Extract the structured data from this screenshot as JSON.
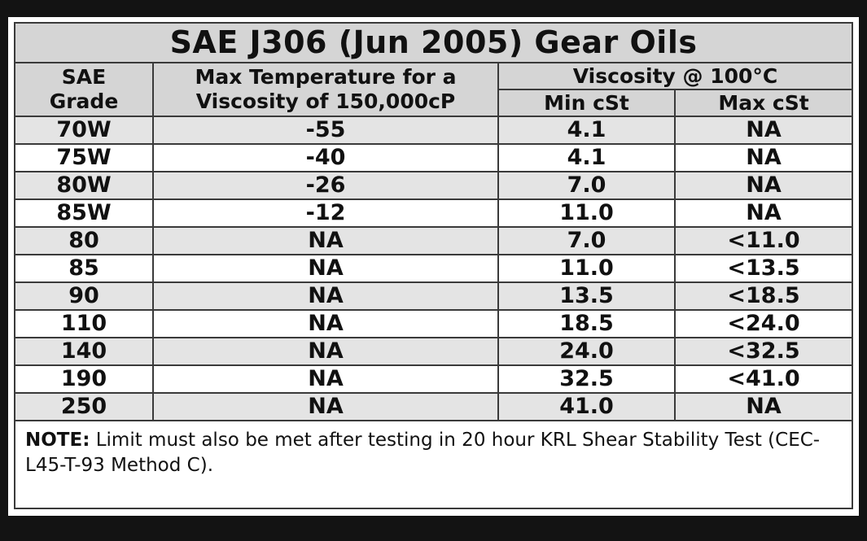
{
  "title": "SAE J306 (Jun 2005) Gear Oils",
  "headers": {
    "grade_line1": "SAE",
    "grade_line2": "Grade",
    "maxtemp_line1": "Max Temperature for a",
    "maxtemp_line2": "Viscosity of 150,000cP",
    "viscosity_group": "Viscosity @ 100°C",
    "min_cst": "Min cSt",
    "max_cst": "Max cSt"
  },
  "rows": [
    {
      "grade": "70W",
      "max_temp": "-55",
      "min_cst": "4.1",
      "max_cst": "NA"
    },
    {
      "grade": "75W",
      "max_temp": "-40",
      "min_cst": "4.1",
      "max_cst": "NA"
    },
    {
      "grade": "80W",
      "max_temp": "-26",
      "min_cst": "7.0",
      "max_cst": "NA"
    },
    {
      "grade": "85W",
      "max_temp": "-12",
      "min_cst": "11.0",
      "max_cst": "NA"
    },
    {
      "grade": "80",
      "max_temp": "NA",
      "min_cst": "7.0",
      "max_cst": "<11.0"
    },
    {
      "grade": "85",
      "max_temp": "NA",
      "min_cst": "11.0",
      "max_cst": "<13.5"
    },
    {
      "grade": "90",
      "max_temp": "NA",
      "min_cst": "13.5",
      "max_cst": "<18.5"
    },
    {
      "grade": "110",
      "max_temp": "NA",
      "min_cst": "18.5",
      "max_cst": "<24.0"
    },
    {
      "grade": "140",
      "max_temp": "NA",
      "min_cst": "24.0",
      "max_cst": "<32.5"
    },
    {
      "grade": "190",
      "max_temp": "NA",
      "min_cst": "32.5",
      "max_cst": "<41.0"
    },
    {
      "grade": "250",
      "max_temp": "NA",
      "min_cst": "41.0",
      "max_cst": "NA"
    }
  ],
  "note": {
    "label": "NOTE:",
    "text": " Limit must also be met after testing in 20 hour KRL Shear Stability Test (CEC-L45-T-93 Method C)."
  },
  "colors": {
    "header_bg": "#d5d5d5",
    "shaded_row": "#e4e4e4",
    "border": "#3a3a3a",
    "background": "#131313"
  }
}
